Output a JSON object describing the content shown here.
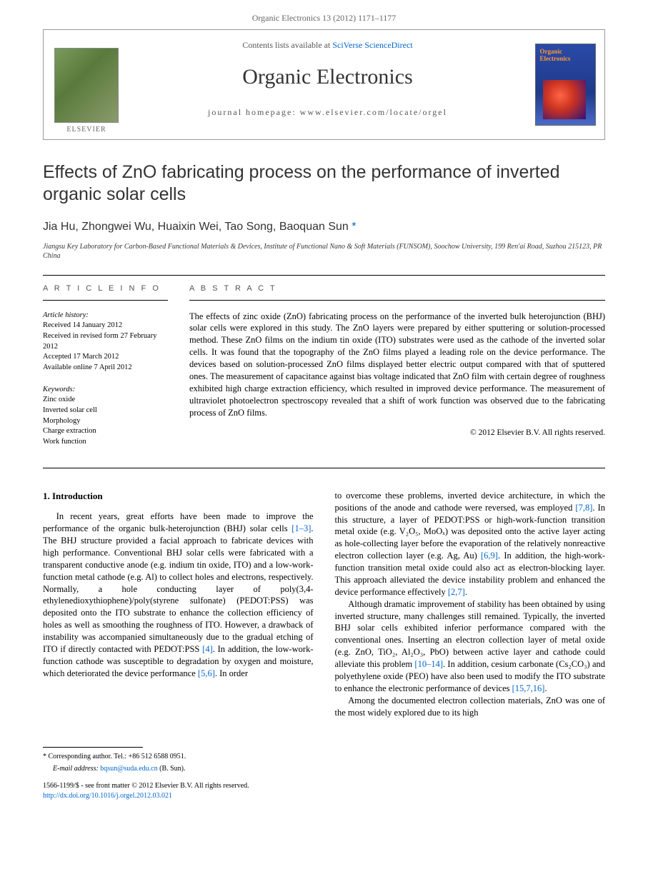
{
  "header": {
    "citation": "Organic Electronics 13 (2012) 1171–1177"
  },
  "banner": {
    "publisher": "ELSEVIER",
    "contents_prefix": "Contents lists available at ",
    "contents_link": "SciVerse ScienceDirect",
    "journal": "Organic Electronics",
    "homepage_label": "journal homepage: ",
    "homepage_url": "www.elsevier.com/locate/orgel",
    "cover_title": "Organic Electronics"
  },
  "article": {
    "title": "Effects of ZnO fabricating process on the performance of inverted organic solar cells",
    "authors": "Jia Hu, Zhongwei Wu, Huaixin Wei, Tao Song, Baoquan Sun",
    "corr_marker": "*",
    "affiliation": "Jiangsu Key Laboratory for Carbon-Based Functional Materials & Devices, Institute of Functional Nano & Soft Materials (FUNSOM), Soochow University, 199 Ren'ai Road, Suzhou 215123, PR China"
  },
  "info": {
    "heading": "A R T I C L E   I N F O",
    "history_label": "Article history:",
    "received": "Received 14 January 2012",
    "revised": "Received in revised form 27 February 2012",
    "accepted": "Accepted 17 March 2012",
    "online": "Available online 7 April 2012",
    "keywords_label": "Keywords:",
    "kw1": "Zinc oxide",
    "kw2": "Inverted solar cell",
    "kw3": "Morphology",
    "kw4": "Charge extraction",
    "kw5": "Work function"
  },
  "abstract": {
    "heading": "A B S T R A C T",
    "text": "The effects of zinc oxide (ZnO) fabricating process on the performance of the inverted bulk heterojunction (BHJ) solar cells were explored in this study. The ZnO layers were prepared by either sputtering or solution-processed method. These ZnO films on the indium tin oxide (ITO) substrates were used as the cathode of the inverted solar cells. It was found that the topography of the ZnO films played a leading role on the device performance. The devices based on solution-processed ZnO films displayed better electric output compared with that of sputtered ones. The measurement of capacitance against bias voltage indicated that ZnO film with certain degree of roughness exhibited high charge extraction efficiency, which resulted in improved device performance. The measurement of ultraviolet photoelectron spectroscopy revealed that a shift of work function was observed due to the fabricating process of ZnO films.",
    "copyright": "© 2012 Elsevier B.V. All rights reserved."
  },
  "body": {
    "section_heading": "1. Introduction",
    "para1_a": "In recent years, great efforts have been made to improve the performance of the organic bulk-heterojunction (BHJ) solar cells ",
    "ref1": "[1–3]",
    "para1_b": ". The BHJ structure provided a facial approach to fabricate devices with high performance. Conventional BHJ solar cells were fabricated with a transparent conductive anode (e.g. indium tin oxide, ITO) and a low-work-function metal cathode (e.g. Al) to collect holes and electrons, respectively. Normally, a hole conducting layer of poly(3,4-ethylenedioxythiophene)/poly(styrene sulfonate) (PEDOT:PSS) was deposited onto the ITO substrate to enhance the collection efficiency of holes as well as smoothing the roughness of ITO. However, a drawback of instability was accompanied simultaneously due to the gradual etching of ITO if directly contacted with PEDOT:PSS ",
    "ref2": "[4]",
    "para1_c": ". In addition, the low-work-function cathode was susceptible to degradation by oxygen and moisture, which deteriorated the device performance ",
    "ref3": "[5,6]",
    "para1_d": ". In order",
    "para2_a": "to overcome these problems, inverted device architecture, in which the positions of the anode and cathode were reversed, was employed ",
    "ref4": "[7,8]",
    "para2_b": ". In this structure, a layer of PEDOT:PSS or high-work-function transition metal oxide (e.g. V₂O₅, MoOₓ) was deposited onto the active layer acting as hole-collecting layer before the evaporation of the relatively nonreactive electron collection layer (e.g. Ag, Au) ",
    "ref5": "[6,9]",
    "para2_c": ". In addition, the high-work-function transition metal oxide could also act as electron-blocking layer. This approach alleviated the device instability problem and enhanced the device performance effectively ",
    "ref6": "[2,7]",
    "para2_d": ".",
    "para3_a": "Although dramatic improvement of stability has been obtained by using inverted structure, many challenges still remained. Typically, the inverted BHJ solar cells exhibited inferior performance compared with the conventional ones. Inserting an electron collection layer of metal oxide (e.g. ZnO, TiO₂, Al₂O₃, PbO) between active layer and cathode could alleviate this problem ",
    "ref7": "[10–14]",
    "para3_b": ". In addition, cesium carbonate (Cs₂CO₃) and polyethylene oxide (PEO) have also been used to modify the ITO substrate to enhance the electronic performance of devices ",
    "ref8": "[15,7,16]",
    "para3_c": ".",
    "para4_a": "Among the documented electron collection materials, ZnO was one of the most widely explored due to its high"
  },
  "footer": {
    "corr_label": "* Corresponding author. Tel.: +86 512 6588 0951.",
    "email_label": "E-mail address: ",
    "email": "bqsun@suda.edu.cn",
    "email_author": " (B. Sun).",
    "issn_line": "1566-1199/$ - see front matter © 2012 Elsevier B.V. All rights reserved.",
    "doi_url": "http://dx.doi.org/10.1016/j.orgel.2012.03.021"
  },
  "colors": {
    "link": "#0066cc",
    "text": "#000000",
    "muted": "#666666"
  }
}
